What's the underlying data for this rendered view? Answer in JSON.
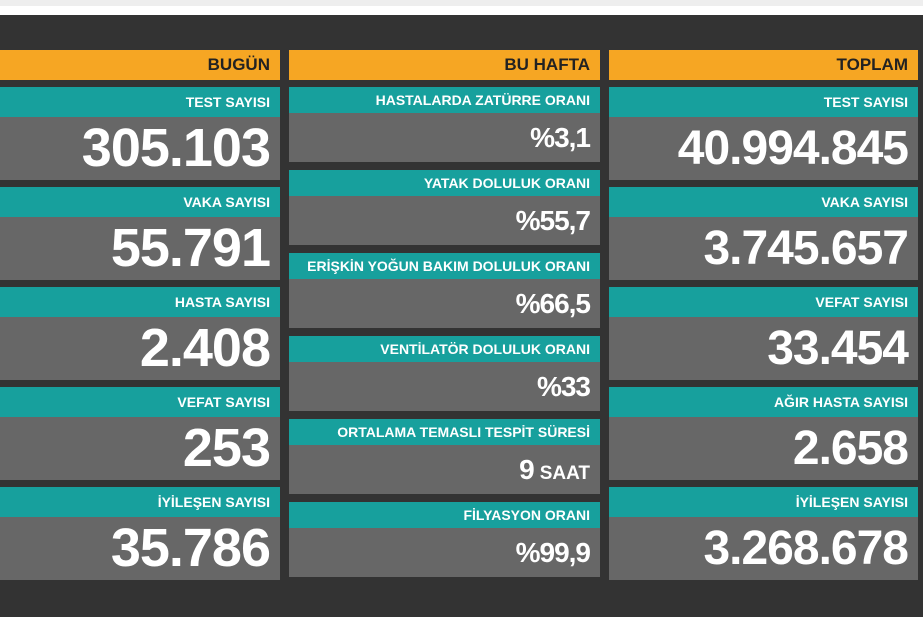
{
  "columns": [
    {
      "title": "BUGÜN",
      "items": [
        {
          "label": "TEST SAYISI",
          "value": "305.103"
        },
        {
          "label": "VAKA SAYISI",
          "value": "55.791"
        },
        {
          "label": "HASTA SAYISI",
          "value": "2.408"
        },
        {
          "label": "VEFAT SAYISI",
          "value": "253"
        },
        {
          "label": "İYİLEŞEN SAYISI",
          "value": "35.786"
        }
      ]
    },
    {
      "title": "BU HAFTA",
      "items": [
        {
          "label": "HASTALARDA ZATÜRRE ORANI",
          "value": "%3,1"
        },
        {
          "label": "YATAK DOLULUK ORANI",
          "value": "%55,7"
        },
        {
          "label": "ERİŞKİN YOĞUN BAKIM DOLULUK ORANI",
          "value": "%66,5"
        },
        {
          "label": "VENTİLATÖR DOLULUK ORANI",
          "value": "%33"
        },
        {
          "label": "ORTALAMA TEMASLI TESPİT SÜRESİ",
          "value": "9",
          "unit": "SAAT"
        },
        {
          "label": "FİLYASYON ORANI",
          "value": "%99,9"
        }
      ]
    },
    {
      "title": "TOPLAM",
      "items": [
        {
          "label": "TEST SAYISI",
          "value": "40.994.845"
        },
        {
          "label": "VAKA SAYISI",
          "value": "3.745.657"
        },
        {
          "label": "VEFAT SAYISI",
          "value": "33.454"
        },
        {
          "label": "AĞIR HASTA SAYISI",
          "value": "2.658"
        },
        {
          "label": "İYİLEŞEN SAYISI",
          "value": "3.268.678"
        }
      ]
    }
  ]
}
